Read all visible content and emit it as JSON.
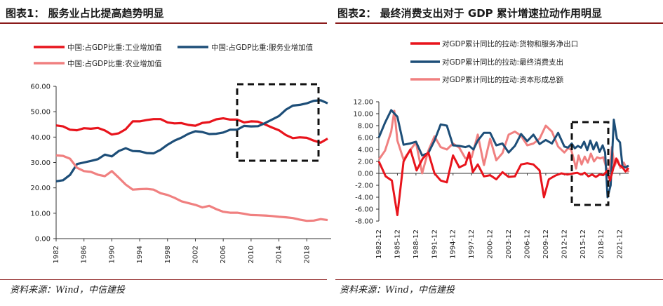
{
  "panel1": {
    "title": "图表1：  服务业占比提高趋势明显",
    "source": "资料来源：Wind，中信建投"
  },
  "panel2": {
    "title": "图表2：  最终消费支出对于 GDP 累计增速拉动作用明显",
    "source": "资料来源：Wind，中信建投"
  },
  "chart_data": [
    {
      "type": "line",
      "title": "服务业占比提高趋势明显",
      "ylim": [
        0,
        60
      ],
      "yticks": [
        "0.00",
        "10.00",
        "20.00",
        "30.00",
        "40.00",
        "50.00",
        "60.00"
      ],
      "xticks": [
        "1982",
        "1986",
        "1990",
        "1994",
        "1998",
        "2002",
        "2006",
        "2010",
        "2014",
        "2018"
      ],
      "x": [
        1982,
        1983,
        1984,
        1985,
        1986,
        1987,
        1988,
        1989,
        1990,
        1991,
        1992,
        1993,
        1994,
        1995,
        1996,
        1997,
        1998,
        1999,
        2000,
        2001,
        2002,
        2003,
        2004,
        2005,
        2006,
        2007,
        2008,
        2009,
        2010,
        2011,
        2012,
        2013,
        2014,
        2015,
        2016,
        2017,
        2018,
        2019,
        2020,
        2021
      ],
      "series": [
        {
          "name": "中国:占GDP比重:工业增加值",
          "color": "#e8141c",
          "values": [
            44.6,
            44.2,
            42.9,
            42.7,
            43.5,
            43.3,
            43.6,
            42.6,
            41.0,
            41.5,
            43.1,
            46.2,
            46.2,
            46.7,
            47.1,
            47.1,
            45.8,
            45.4,
            45.5,
            44.8,
            44.5,
            45.6,
            45.9,
            47.0,
            47.4,
            46.9,
            46.9,
            45.8,
            46.2,
            46.1,
            45.0,
            43.8,
            42.7,
            40.8,
            39.6,
            39.9,
            39.7,
            38.6,
            37.8,
            39.4
          ]
        },
        {
          "name": "中国:占GDP比重:服务业增加值",
          "color": "#1d4e78",
          "values": [
            22.6,
            23.0,
            25.1,
            29.4,
            30.0,
            30.6,
            31.3,
            33.1,
            32.4,
            34.5,
            35.6,
            34.5,
            34.4,
            33.7,
            33.6,
            35.0,
            37.0,
            38.6,
            39.8,
            41.3,
            42.3,
            42.0,
            41.2,
            41.3,
            41.8,
            42.9,
            42.9,
            44.4,
            44.2,
            44.3,
            45.5,
            46.9,
            48.3,
            50.8,
            52.4,
            52.7,
            53.3,
            54.3,
            54.5,
            53.3
          ]
        },
        {
          "name": "中国:占GDP比重:农业增加值",
          "color": "#f08080",
          "values": [
            32.8,
            32.6,
            31.5,
            27.9,
            26.6,
            26.3,
            25.2,
            24.6,
            26.6,
            24.0,
            21.3,
            19.3,
            19.5,
            19.6,
            19.3,
            17.9,
            17.2,
            16.1,
            14.7,
            14.0,
            13.3,
            12.3,
            12.9,
            11.6,
            10.6,
            10.2,
            10.2,
            9.8,
            9.3,
            9.2,
            9.1,
            8.9,
            8.6,
            8.4,
            8.1,
            7.5,
            7.0,
            7.1,
            7.7,
            7.3
          ]
        }
      ],
      "annotation": "dashed box 2010-2021"
    },
    {
      "type": "line",
      "title": "最终消费支出对于 GDP 累计增速拉动作用明显",
      "ylim": [
        -8,
        12
      ],
      "yticks": [
        "-8.00",
        "-6.00",
        "-4.00",
        "-2.00",
        "0.00",
        "2.00",
        "4.00",
        "6.00",
        "8.00",
        "10.00",
        "12.00"
      ],
      "xticks": [
        "1982-12",
        "1985-12",
        "1988-12",
        "1991-12",
        "1994-12",
        "1997-12",
        "2000-12",
        "2003-12",
        "2006-12",
        "2009-12",
        "2012-12",
        "2015-12",
        "2018-12",
        "2021-12"
      ],
      "x_range": [
        1982.9,
        2023.3
      ],
      "series": [
        {
          "name": "对GDP累计同比的拉动:货物和服务净出口",
          "color": "#e8141c",
          "points": [
            [
              1982.9,
              2.0
            ],
            [
              1984,
              -0.5
            ],
            [
              1985,
              -1.2
            ],
            [
              1985.9,
              -7.0
            ],
            [
              1986.9,
              2.0
            ],
            [
              1988,
              4.0
            ],
            [
              1989,
              0.5
            ],
            [
              1990,
              2.5
            ],
            [
              1990.9,
              3.5
            ],
            [
              1991.9,
              0.0
            ],
            [
              1992.9,
              -1.2
            ],
            [
              1993.9,
              -1.5
            ],
            [
              1994.9,
              3.0
            ],
            [
              1995.9,
              1.0
            ],
            [
              1996.9,
              1.5
            ],
            [
              1997.5,
              3.5
            ],
            [
              1998.1,
              0.2
            ],
            [
              1998.9,
              1.5
            ],
            [
              1999.9,
              -0.5
            ],
            [
              2000.9,
              -0.3
            ],
            [
              2001.9,
              -1.0
            ],
            [
              2002.9,
              0.2
            ],
            [
              2003.9,
              -0.6
            ],
            [
              2004.9,
              -0.5
            ],
            [
              2005.9,
              1.5
            ],
            [
              2006.9,
              1.7
            ],
            [
              2007.9,
              1.5
            ],
            [
              2008.9,
              0.5
            ],
            [
              2009.6,
              -4.0
            ],
            [
              2010.4,
              -1.0
            ],
            [
              2011.4,
              -0.4
            ],
            [
              2012.4,
              0.0
            ],
            [
              2013.4,
              -0.2
            ],
            [
              2014.4,
              0.0
            ],
            [
              2015.0,
              0.1
            ],
            [
              2015.6,
              -0.2
            ],
            [
              2016.2,
              0.1
            ],
            [
              2016.8,
              -0.5
            ],
            [
              2017.4,
              -0.2
            ],
            [
              2018.0,
              -0.6
            ],
            [
              2018.6,
              -0.2
            ],
            [
              2019.2,
              -0.3
            ],
            [
              2019.8,
              0.4
            ],
            [
              2020.3,
              -1.2
            ],
            [
              2020.8,
              0.8
            ],
            [
              2021.3,
              2.5
            ],
            [
              2021.8,
              1.4
            ],
            [
              2022.3,
              1.0
            ],
            [
              2022.8,
              0.3
            ],
            [
              2023.3,
              0.9
            ]
          ]
        },
        {
          "name": "对GDP累计同比的拉动:最终消费支出",
          "color": "#1d4e78",
          "points": [
            [
              1982.9,
              6.0
            ],
            [
              1983.9,
              8.5
            ],
            [
              1984.9,
              10.6
            ],
            [
              1985.9,
              9.5
            ],
            [
              1986.9,
              4.8
            ],
            [
              1987.9,
              5.0
            ],
            [
              1988.9,
              5.3
            ],
            [
              1989.9,
              3.0
            ],
            [
              1990.9,
              3.4
            ],
            [
              1991.9,
              5.5
            ],
            [
              1992.9,
              8.2
            ],
            [
              1993.9,
              8.0
            ],
            [
              1994.9,
              4.7
            ],
            [
              1995.9,
              4.6
            ],
            [
              1996.9,
              4.4
            ],
            [
              1997.5,
              4.6
            ],
            [
              1998.2,
              4.0
            ],
            [
              1998.9,
              5.5
            ],
            [
              1999.9,
              6.8
            ],
            [
              2000.9,
              6.8
            ],
            [
              2001.9,
              4.7
            ],
            [
              2002.9,
              5.0
            ],
            [
              2003.9,
              3.5
            ],
            [
              2004.9,
              4.6
            ],
            [
              2005.9,
              6.6
            ],
            [
              2006.9,
              5.4
            ],
            [
              2007.9,
              6.5
            ],
            [
              2008.9,
              4.9
            ],
            [
              2009.9,
              5.6
            ],
            [
              2010.9,
              5.0
            ],
            [
              2011.9,
              6.8
            ],
            [
              2012.9,
              4.5
            ],
            [
              2013.5,
              4.3
            ],
            [
              2014.1,
              5.0
            ],
            [
              2014.6,
              4.2
            ],
            [
              2015.1,
              4.6
            ],
            [
              2015.6,
              4.3
            ],
            [
              2016.1,
              5.3
            ],
            [
              2016.6,
              3.9
            ],
            [
              2017.1,
              5.5
            ],
            [
              2017.6,
              4.0
            ],
            [
              2018.1,
              5.2
            ],
            [
              2018.6,
              3.6
            ],
            [
              2019.1,
              4.7
            ],
            [
              2019.5,
              3.5
            ],
            [
              2019.9,
              -4.0
            ],
            [
              2020.4,
              -2.0
            ],
            [
              2020.9,
              9.0
            ],
            [
              2021.4,
              5.8
            ],
            [
              2021.9,
              5.2
            ],
            [
              2022.3,
              1.2
            ],
            [
              2022.8,
              1.0
            ],
            [
              2023.3,
              1.3
            ]
          ]
        },
        {
          "name": "对GDP累计同比的拉动:资本形成总额",
          "color": "#f08080",
          "points": [
            [
              1982.9,
              2.3
            ],
            [
              1983.9,
              3.8
            ],
            [
              1984.9,
              7.0
            ],
            [
              1985.4,
              10.5
            ],
            [
              1985.9,
              5.5
            ],
            [
              1986.9,
              2.3
            ],
            [
              1987.9,
              3.8
            ],
            [
              1988.9,
              5.2
            ],
            [
              1989.9,
              0.0
            ],
            [
              1990.9,
              3.8
            ],
            [
              1991.9,
              6.2
            ],
            [
              1992.9,
              4.4
            ],
            [
              1993.9,
              4.0
            ],
            [
              1994.9,
              5.0
            ],
            [
              1995.9,
              4.3
            ],
            [
              1996.9,
              2.5
            ],
            [
              1997.9,
              2.7
            ],
            [
              1998.9,
              6.5
            ],
            [
              1999.9,
              1.4
            ],
            [
              2000.9,
              5.8
            ],
            [
              2001.9,
              2.2
            ],
            [
              2002.9,
              3.4
            ],
            [
              2003.9,
              6.5
            ],
            [
              2004.9,
              7.0
            ],
            [
              2005.9,
              6.3
            ],
            [
              2006.9,
              4.7
            ],
            [
              2007.9,
              5.0
            ],
            [
              2008.9,
              5.8
            ],
            [
              2009.9,
              8.0
            ],
            [
              2010.9,
              7.0
            ],
            [
              2011.9,
              4.5
            ],
            [
              2012.9,
              3.5
            ],
            [
              2013.5,
              4.2
            ],
            [
              2014.0,
              4.0
            ],
            [
              2014.4,
              2.5
            ],
            [
              2014.8,
              0.8
            ],
            [
              2015.2,
              3.0
            ],
            [
              2015.7,
              1.5
            ],
            [
              2016.2,
              2.8
            ],
            [
              2016.7,
              1.8
            ],
            [
              2017.2,
              3.3
            ],
            [
              2017.7,
              2.0
            ],
            [
              2018.2,
              2.7
            ],
            [
              2018.7,
              2.5
            ],
            [
              2019.2,
              2.7
            ],
            [
              2019.7,
              0.9
            ],
            [
              2020.2,
              0.4
            ],
            [
              2020.6,
              4.4
            ],
            [
              2021.0,
              1.2
            ],
            [
              2021.5,
              2.3
            ],
            [
              2022.0,
              0.9
            ],
            [
              2022.5,
              1.8
            ],
            [
              2023.3,
              0.2
            ]
          ]
        }
      ],
      "annotation": "dashed box 2014-2021"
    }
  ]
}
